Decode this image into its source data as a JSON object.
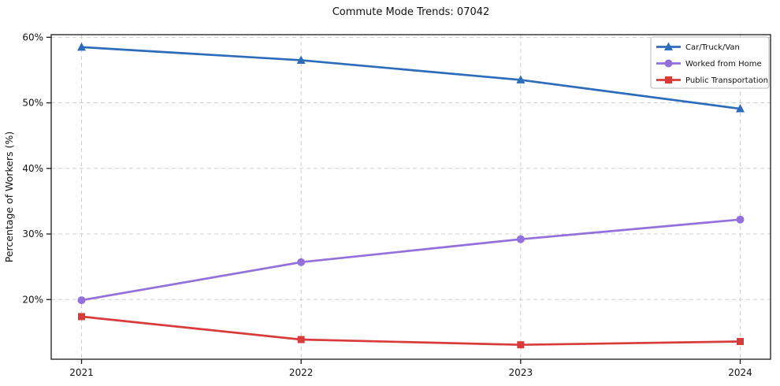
{
  "figure": {
    "background": "#ffffff"
  },
  "chart_data": {
    "type": "line",
    "title": "Commute Mode Trends: 07042",
    "xlabel": "",
    "ylabel": "Percentage of Workers (%)",
    "categories": [
      "2021",
      "2022",
      "2023",
      "2024"
    ],
    "series": [
      {
        "name": "Car/Truck/Van",
        "color": "#2d6bbb",
        "marker": "triangle",
        "values": [
          58.5,
          56.5,
          53.5,
          49.1
        ]
      },
      {
        "name": "Worked from Home",
        "color": "#9370db",
        "marker": "circle",
        "values": [
          19.9,
          25.7,
          29.2,
          32.2
        ]
      },
      {
        "name": "Public Transportation",
        "color": "#d93b3b",
        "marker": "square",
        "values": [
          17.4,
          13.9,
          13.1,
          13.6
        ]
      }
    ],
    "ylim": [
      10.9,
      60.4
    ],
    "yticks": [
      20,
      30,
      40,
      50,
      60
    ],
    "ytick_labels": [
      "20%",
      "30%",
      "40%",
      "50%",
      "60%"
    ],
    "xtick_labels": [
      "2021",
      "2022",
      "2023",
      "2024"
    ],
    "grid": true,
    "grid_style": "dashed",
    "grid_color": "#cfcfcf",
    "axis_color": "#1a1a1a",
    "tick_label_color": "#111111",
    "legend": {
      "position": "upper right",
      "border_color": "#b8b8b8",
      "background": "#ffffff"
    }
  }
}
